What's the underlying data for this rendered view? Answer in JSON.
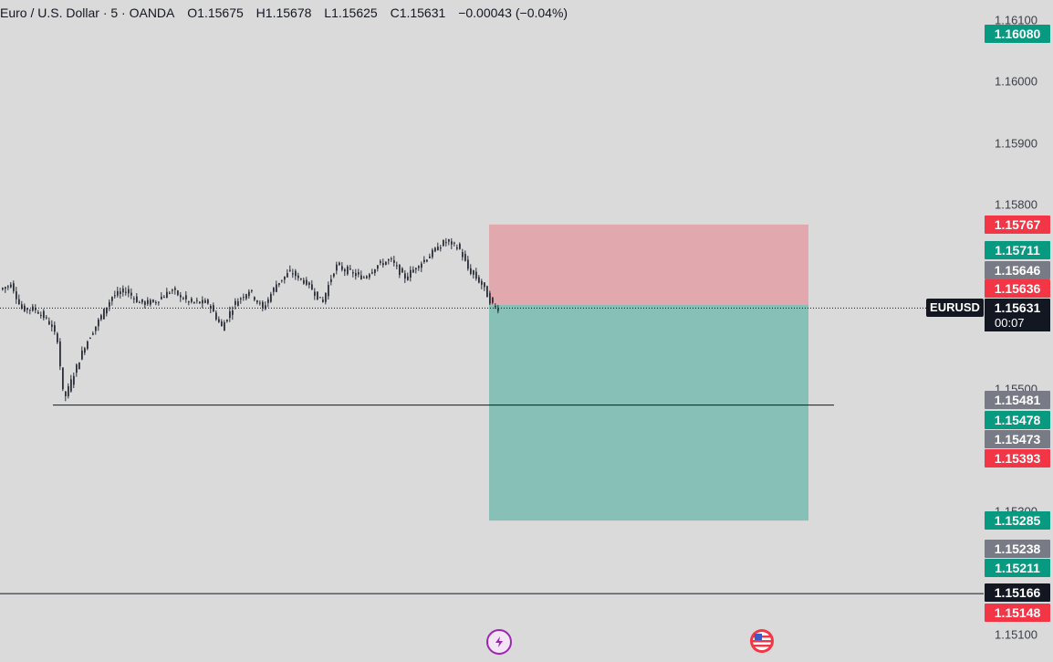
{
  "header": {
    "symbol": "Euro / U.S. Dollar · 5 · OANDA",
    "open": "O1.15675",
    "high": "H1.15678",
    "low": "L1.15625",
    "close": "C1.15631",
    "change": "−0.00043 (−0.04%)"
  },
  "price_scale": {
    "ticks": [
      "1.16100",
      "1.16000",
      "1.15900",
      "1.15800",
      "1.15500",
      "1.15300",
      "1.15100"
    ]
  },
  "price_tags": [
    {
      "value": "1.16080",
      "color": "#089981"
    },
    {
      "value": "1.15767",
      "color": "#f23645"
    },
    {
      "value": "1.15711",
      "color": "#089981"
    },
    {
      "value": "1.15646",
      "color": "#787b86"
    },
    {
      "value": "1.15636",
      "color": "#f23645"
    },
    {
      "value": "1.15481",
      "color": "#787b86"
    },
    {
      "value": "1.15478",
      "color": "#089981"
    },
    {
      "value": "1.15473",
      "color": "#787b86"
    },
    {
      "value": "1.15393",
      "color": "#f23645"
    },
    {
      "value": "1.15285",
      "color": "#089981"
    },
    {
      "value": "1.15238",
      "color": "#787b86"
    },
    {
      "value": "1.15211",
      "color": "#089981"
    },
    {
      "value": "1.15166",
      "color": "#131722"
    },
    {
      "value": "1.15148",
      "color": "#f23645"
    }
  ],
  "last_price": {
    "symbol": "EURUSD",
    "value": "1.15631",
    "countdown": "00:07"
  },
  "position_tool": {
    "stop": 1.15767,
    "entry": 1.15636,
    "target": 1.15285,
    "stop_color": "#f23645",
    "target_color": "#089981"
  },
  "horizontal_lines": [
    1.15473,
    1.15166
  ],
  "icons": [
    "lightning-icon",
    "us-flag-icon"
  ],
  "colors": {
    "up": "#089981",
    "down": "#f23645",
    "candle": "#2a2e39",
    "background": "#dadada"
  }
}
